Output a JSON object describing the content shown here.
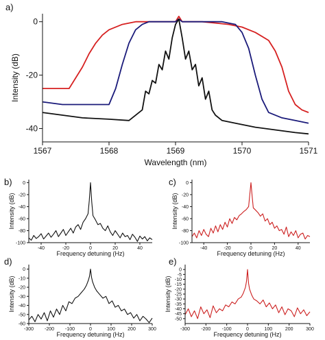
{
  "chart_data": [
    {
      "panel": "a)",
      "type": "line",
      "xlabel": "Wavelength (nm)",
      "ylabel": "Intensity (dB)",
      "xlim": [
        1567,
        1571
      ],
      "ylim": [
        -45,
        3
      ],
      "xticks": [
        1567,
        1568,
        1569,
        1570,
        1571
      ],
      "yticks": [
        0,
        -20,
        -40
      ],
      "series": [
        {
          "color": "#d62020",
          "x": [
            1567.0,
            1567.2,
            1567.4,
            1567.6,
            1567.7,
            1567.8,
            1567.9,
            1568.0,
            1568.2,
            1568.4,
            1568.6,
            1568.8,
            1569.0,
            1569.05,
            1569.1,
            1569.2,
            1569.4,
            1569.6,
            1569.8,
            1570.0,
            1570.2,
            1570.4,
            1570.5,
            1570.6,
            1570.7,
            1570.8,
            1570.9,
            1571.0
          ],
          "y": [
            -25,
            -25,
            -25,
            -17,
            -12,
            -8,
            -5,
            -3,
            -1,
            0,
            0,
            0,
            0,
            2,
            0,
            0,
            0,
            -0.5,
            -1,
            -2,
            -4,
            -7,
            -11,
            -17,
            -26,
            -31,
            -33,
            -34
          ]
        },
        {
          "color": "#1a1a7a",
          "x": [
            1567.0,
            1567.3,
            1567.6,
            1567.8,
            1568.0,
            1568.1,
            1568.2,
            1568.3,
            1568.4,
            1568.5,
            1568.6,
            1568.8,
            1569.0,
            1569.05,
            1569.1,
            1569.3,
            1569.5,
            1569.7,
            1569.9,
            1570.0,
            1570.1,
            1570.2,
            1570.3,
            1570.4,
            1570.6,
            1570.8,
            1571.0
          ],
          "y": [
            -30,
            -31,
            -31,
            -31,
            -31,
            -25,
            -16,
            -8,
            -3,
            -1,
            0,
            0,
            0,
            1,
            0,
            0,
            0,
            0,
            -1,
            -4,
            -10,
            -20,
            -29,
            -34,
            -36,
            -37,
            -38
          ]
        },
        {
          "color": "#111111",
          "x": [
            1567.0,
            1567.3,
            1567.6,
            1568.0,
            1568.3,
            1568.5,
            1568.55,
            1568.6,
            1568.65,
            1568.7,
            1568.75,
            1568.8,
            1568.85,
            1568.9,
            1568.95,
            1569.0,
            1569.05,
            1569.1,
            1569.15,
            1569.2,
            1569.25,
            1569.3,
            1569.35,
            1569.4,
            1569.45,
            1569.5,
            1569.55,
            1569.6,
            1569.7,
            1569.9,
            1570.2,
            1570.5,
            1570.8,
            1571.0
          ],
          "y": [
            -34,
            -35,
            -36,
            -36.5,
            -37,
            -33,
            -26,
            -27,
            -22,
            -23,
            -16,
            -18,
            -11,
            -14,
            -6,
            -1,
            1,
            -6,
            -14,
            -11,
            -18,
            -16,
            -24,
            -21,
            -29,
            -26,
            -33,
            -35,
            -37,
            -38,
            -39.5,
            -40.5,
            -41.5,
            -42
          ]
        }
      ]
    },
    {
      "panel": "b)",
      "type": "line",
      "xlabel": "Frequency detuning (Hz)",
      "ylabel": "Intensity (dB)",
      "xlim": [
        -50,
        50
      ],
      "ylim": [
        -100,
        5
      ],
      "xticks": [
        -40,
        -20,
        0,
        20,
        40
      ],
      "yticks": [
        0,
        -20,
        -40,
        -60,
        -80,
        -100
      ],
      "series": [
        {
          "color": "#111111",
          "x": [
            -50,
            -48,
            -46,
            -44,
            -42,
            -40,
            -38,
            -36,
            -34,
            -32,
            -30,
            -28,
            -26,
            -24,
            -22,
            -20,
            -18,
            -16,
            -14,
            -12,
            -10,
            -8,
            -6,
            -4,
            -2,
            -1,
            0,
            1,
            2,
            4,
            6,
            8,
            10,
            12,
            14,
            16,
            18,
            20,
            22,
            24,
            26,
            28,
            30,
            32,
            34,
            36,
            38,
            40,
            42,
            44,
            46,
            48,
            50
          ],
          "y": [
            -92,
            -96,
            -88,
            -93,
            -90,
            -85,
            -94,
            -89,
            -84,
            -91,
            -86,
            -80,
            -90,
            -84,
            -78,
            -88,
            -82,
            -76,
            -84,
            -74,
            -70,
            -78,
            -66,
            -60,
            -52,
            -30,
            0,
            -32,
            -55,
            -62,
            -70,
            -68,
            -76,
            -80,
            -72,
            -82,
            -88,
            -80,
            -86,
            -92,
            -84,
            -90,
            -88,
            -95,
            -86,
            -91,
            -98,
            -89,
            -94,
            -90,
            -97,
            -92,
            -95
          ]
        }
      ]
    },
    {
      "panel": "c)",
      "type": "line",
      "xlabel": "Frequency detuning (Hz)",
      "ylabel": "Intensity (dB)",
      "xlim": [
        -50,
        50
      ],
      "ylim": [
        -100,
        5
      ],
      "xticks": [
        -40,
        -20,
        0,
        20,
        40
      ],
      "yticks": [
        0,
        -20,
        -40,
        -60,
        -80,
        -100
      ],
      "series": [
        {
          "color": "#cc1f1f",
          "x": [
            -50,
            -48,
            -46,
            -44,
            -42,
            -40,
            -38,
            -36,
            -34,
            -32,
            -30,
            -28,
            -26,
            -24,
            -22,
            -20,
            -18,
            -16,
            -14,
            -12,
            -10,
            -8,
            -6,
            -4,
            -2,
            -1,
            0,
            1,
            2,
            4,
            6,
            8,
            10,
            12,
            14,
            16,
            18,
            20,
            22,
            24,
            26,
            28,
            30,
            32,
            34,
            36,
            38,
            40,
            42,
            44,
            46,
            48,
            50
          ],
          "y": [
            -90,
            -84,
            -92,
            -80,
            -88,
            -78,
            -86,
            -90,
            -76,
            -84,
            -72,
            -82,
            -70,
            -78,
            -66,
            -74,
            -60,
            -68,
            -58,
            -62,
            -55,
            -52,
            -48,
            -45,
            -40,
            -20,
            0,
            -22,
            -42,
            -46,
            -50,
            -56,
            -52,
            -64,
            -60,
            -70,
            -66,
            -76,
            -72,
            -80,
            -78,
            -86,
            -74,
            -90,
            -82,
            -88,
            -80,
            -92,
            -86,
            -84,
            -94,
            -88,
            -90
          ]
        }
      ]
    },
    {
      "panel": "d)",
      "type": "line",
      "xlabel": "Frequency detuning (Hz)",
      "ylabel": "Intensity (dB)",
      "xlim": [
        -300,
        300
      ],
      "ylim": [
        -60,
        5
      ],
      "xticks": [
        -300,
        -200,
        -100,
        0,
        100,
        200,
        300
      ],
      "yticks": [
        0,
        -10,
        -20,
        -30,
        -40,
        -50,
        -60
      ],
      "series": [
        {
          "color": "#111111",
          "x": [
            -300,
            -285,
            -270,
            -255,
            -240,
            -225,
            -210,
            -195,
            -180,
            -165,
            -150,
            -135,
            -120,
            -105,
            -90,
            -75,
            -60,
            -45,
            -30,
            -20,
            -10,
            -5,
            0,
            5,
            10,
            20,
            30,
            45,
            60,
            75,
            90,
            105,
            120,
            135,
            150,
            165,
            180,
            195,
            210,
            225,
            240,
            255,
            270,
            285,
            300
          ],
          "y": [
            -56,
            -52,
            -58,
            -50,
            -55,
            -48,
            -57,
            -46,
            -53,
            -44,
            -50,
            -40,
            -46,
            -36,
            -38,
            -32,
            -30,
            -26,
            -22,
            -18,
            -12,
            -8,
            0,
            -9,
            -14,
            -20,
            -24,
            -28,
            -32,
            -30,
            -38,
            -35,
            -42,
            -40,
            -46,
            -44,
            -50,
            -48,
            -54,
            -50,
            -57,
            -52,
            -55,
            -59,
            -54
          ]
        }
      ]
    },
    {
      "panel": "e)",
      "type": "line",
      "xlabel": "Frequency detuning (Hz)",
      "ylabel": "Intensity (dB)",
      "xlim": [
        -300,
        300
      ],
      "ylim": [
        -55,
        5
      ],
      "xticks": [
        -300,
        -200,
        -100,
        0,
        100,
        200,
        300
      ],
      "yticks": [
        0,
        -5,
        -10,
        -15,
        -20,
        -25,
        -30,
        -35,
        -40,
        -45,
        -50
      ],
      "series": [
        {
          "color": "#cc1f1f",
          "x": [
            -300,
            -285,
            -270,
            -255,
            -240,
            -225,
            -210,
            -195,
            -180,
            -165,
            -150,
            -135,
            -120,
            -105,
            -90,
            -75,
            -60,
            -45,
            -30,
            -20,
            -10,
            -5,
            0,
            5,
            10,
            20,
            30,
            45,
            60,
            75,
            90,
            105,
            120,
            135,
            150,
            165,
            180,
            195,
            210,
            225,
            240,
            255,
            270,
            285,
            300
          ],
          "y": [
            -46,
            -40,
            -48,
            -42,
            -50,
            -38,
            -45,
            -41,
            -49,
            -37,
            -44,
            -40,
            -42,
            -36,
            -38,
            -33,
            -35,
            -30,
            -28,
            -24,
            -18,
            -12,
            0,
            -14,
            -20,
            -26,
            -30,
            -32,
            -35,
            -31,
            -38,
            -34,
            -40,
            -36,
            -44,
            -38,
            -46,
            -40,
            -42,
            -48,
            -39,
            -45,
            -41,
            -47,
            -43
          ]
        }
      ]
    }
  ]
}
